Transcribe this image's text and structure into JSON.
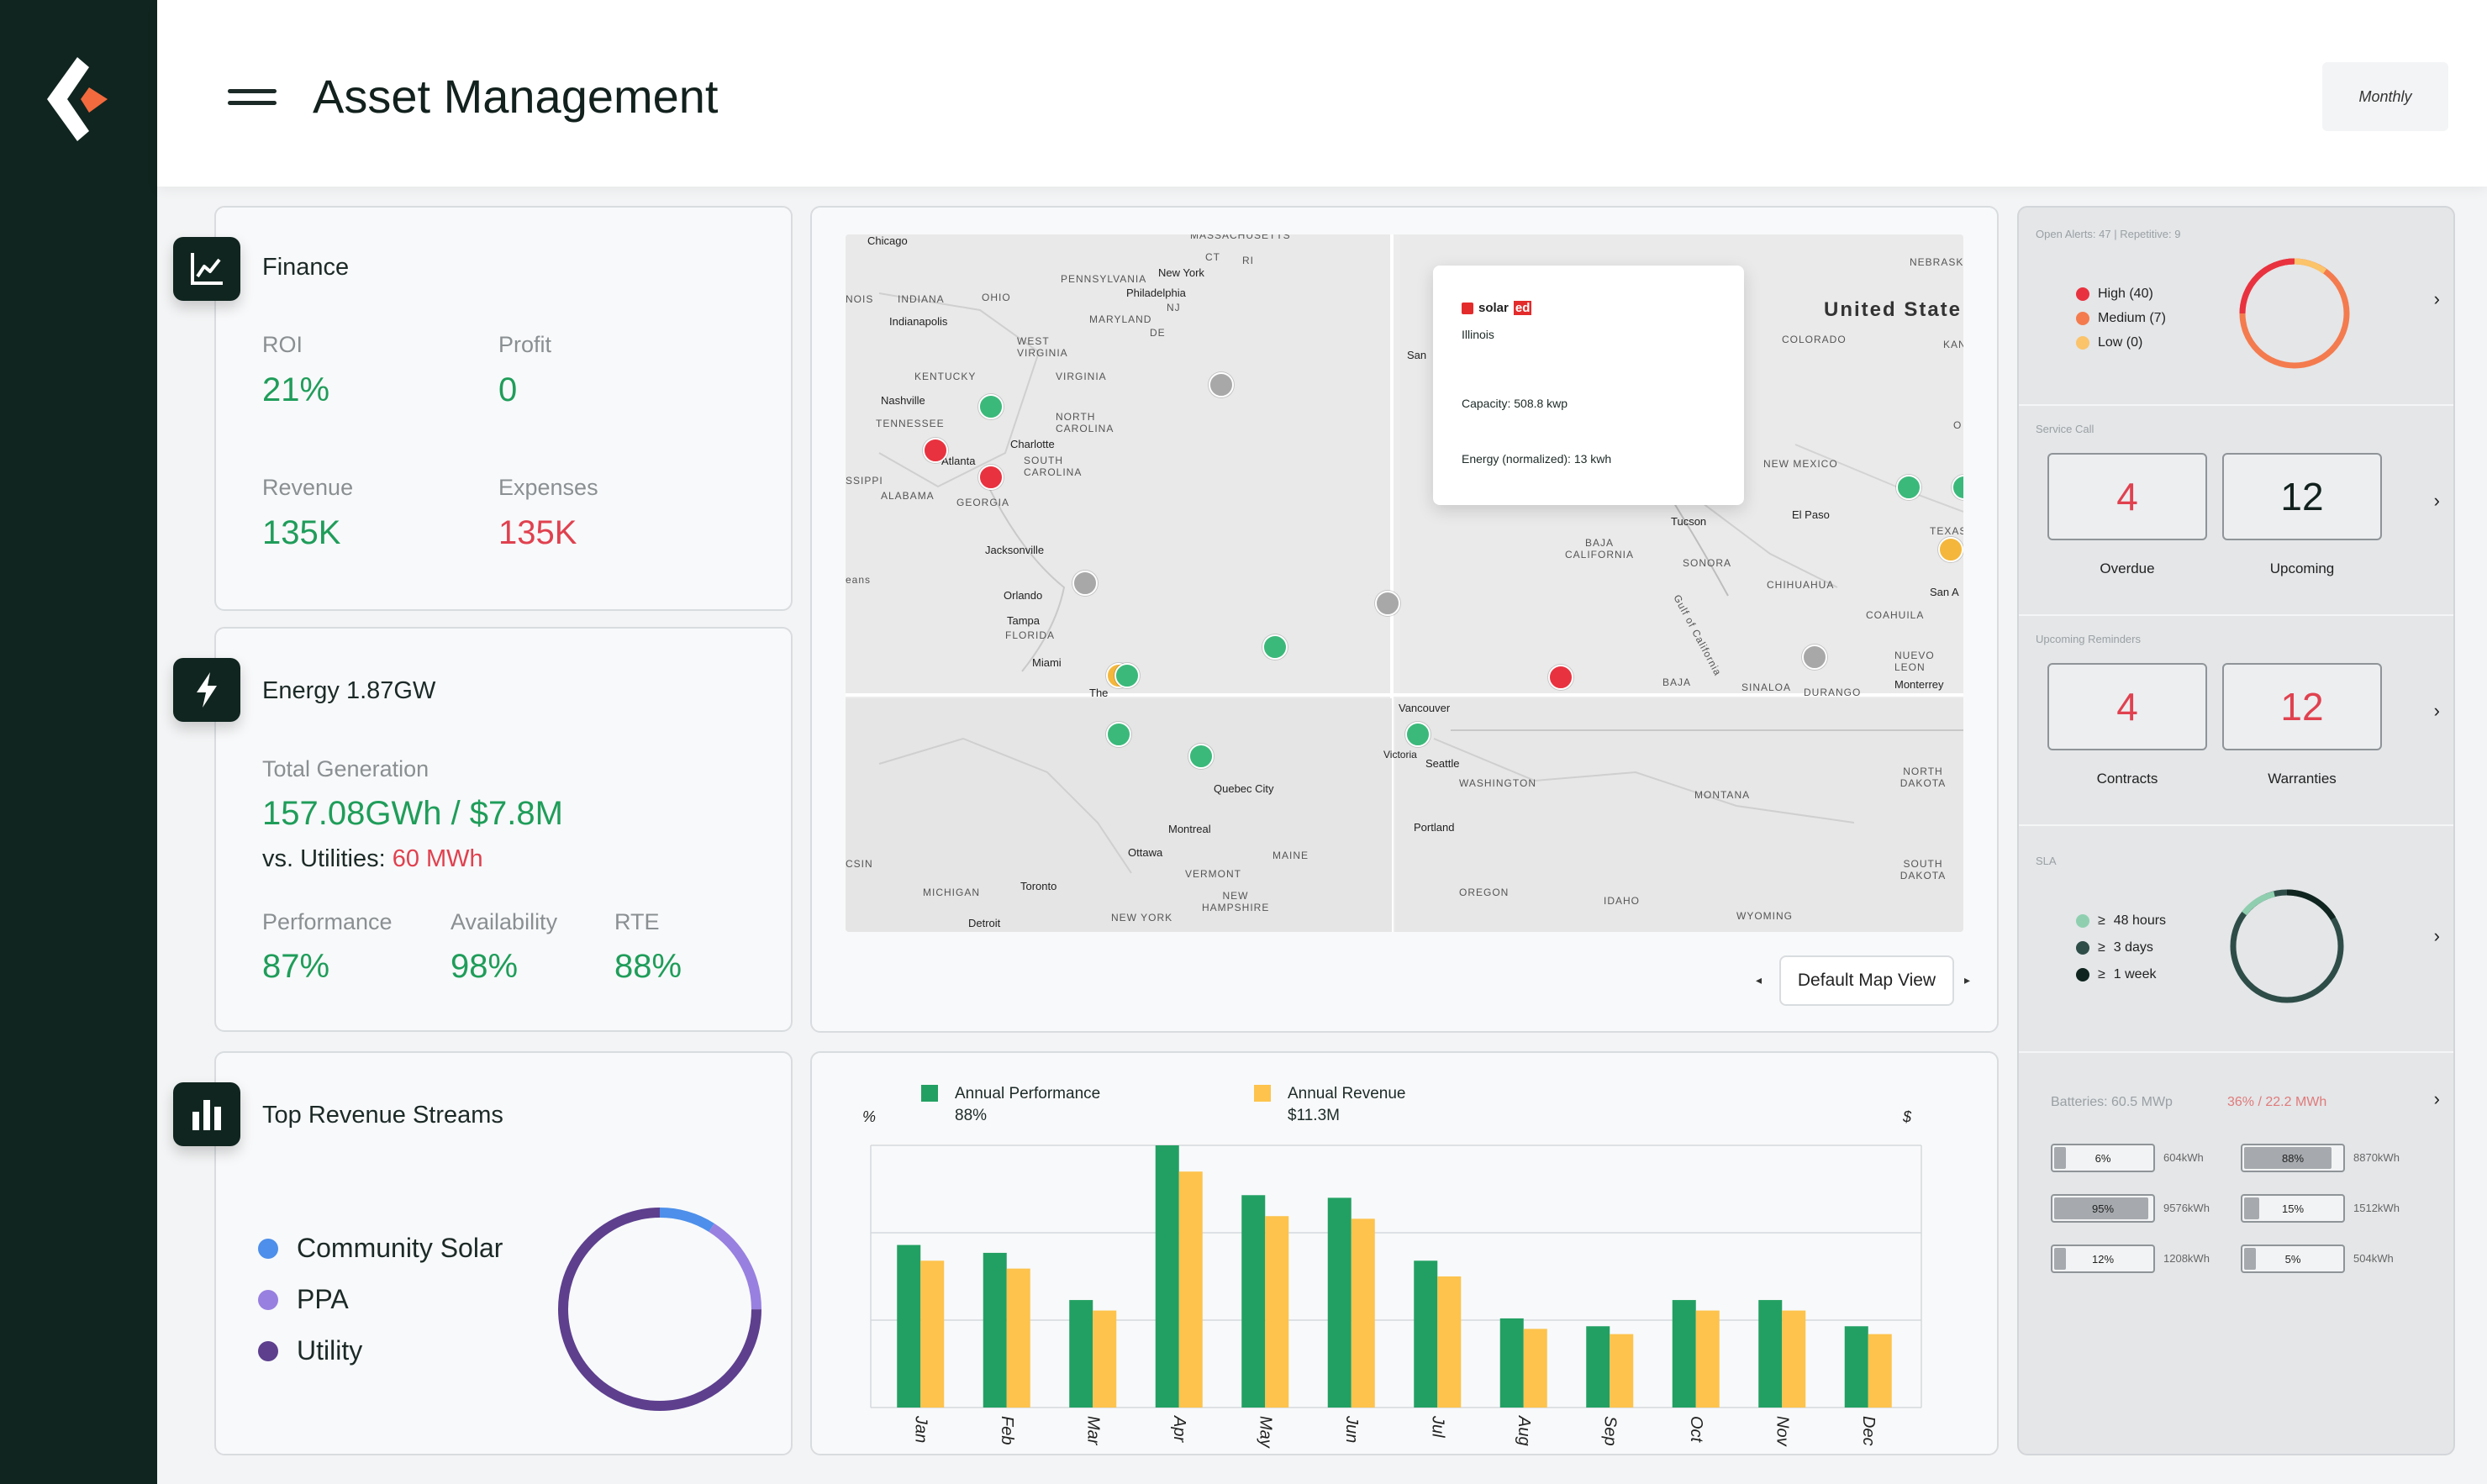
{
  "header": {
    "title": "Asset Management",
    "period": "Monthly"
  },
  "finance": {
    "title": "Finance",
    "roi_label": "ROI",
    "roi": "21%",
    "profit_label": "Profit",
    "profit": "0",
    "revenue_label": "Revenue",
    "revenue": "135K",
    "expenses_label": "Expenses",
    "expenses": "135K"
  },
  "energy": {
    "title": "Energy 1.87GW",
    "total_label": "Total Generation",
    "total": "157.08GWh / $7.8M",
    "vs_label": "vs. Utilities:",
    "vs_value": "60 MWh",
    "performance_label": "Performance",
    "performance": "87%",
    "availability_label": "Availability",
    "availability": "98%",
    "rte_label": "RTE",
    "rte": "88%"
  },
  "revenue_streams": {
    "title": "Top Revenue Streams",
    "items": [
      {
        "label": "Community Solar",
        "color": "#4d8fea",
        "share": 0.09
      },
      {
        "label": "PPA",
        "color": "#9880e0",
        "share": 0.16
      },
      {
        "label": "Utility",
        "color": "#5d3f8e",
        "share": 0.75
      }
    ]
  },
  "map": {
    "labels": {
      "chicago": "Chicago",
      "massachusetts": "MASSACHUSETTS",
      "ct": "CT",
      "ri": "RI",
      "new_york": "New York",
      "pennsylvania": "PENNSYLVANIA",
      "philadelphia": "Philadelphia",
      "nj": "NJ",
      "maryland": "MARYLAND",
      "de": "DE",
      "nois": "NOIS",
      "indiana": "INDIANA",
      "ohio": "OHIO",
      "indianapolis": "Indianapolis",
      "west_virginia": "WEST VIRGINIA",
      "virginia": "VIRGINIA",
      "kentucky": "KENTUCKY",
      "nashville": "Nashville",
      "tennessee": "TENNESSEE",
      "north_carolina": "NORTH CAROLINA",
      "charlotte": "Charlotte",
      "atlanta": "Atlanta",
      "south_carolina": "SOUTH CAROLINA",
      "ssipi": "SSIPPI",
      "alabama": "ALABAMA",
      "georgia": "GEORGIA",
      "jacksonville": "Jacksonville",
      "eans": "eans",
      "orlando": "Orlando",
      "tampa": "Tampa",
      "florida": "FLORIDA",
      "miami": "Miami",
      "the": "The",
      "san": "San",
      "united_states": "United State",
      "nebraska": "NEBRASK",
      "colorado": "COLORADO",
      "kan": "KAN",
      "new_mexico": "NEW MEXICO",
      "tucson": "Tucson",
      "el_paso": "El Paso",
      "texas": "TEXAS",
      "baja_california": "BAJA CALIFORNIA",
      "sonora": "SONORA",
      "chihuahua": "CHIHUAHUA",
      "san_a": "San A",
      "coahuila": "COAHUILA",
      "gulf": "Gulf of California",
      "nuevo_leon": "NUEVO LEON",
      "baja": "BAJA",
      "sinaloa": "SINALOA",
      "durango": "DURANGO",
      "monterrey": "Monterrey",
      "o": "O",
      "vancouver": "Vancouver",
      "victoria": "Victoria",
      "seattle": "Seattle",
      "washington": "WASHINGTON",
      "montana": "MONTANA",
      "north_dakota": "NORTH DAKOTA",
      "quebec_city": "Quebec City",
      "montreal": "Montreal",
      "ottawa": "Ottawa",
      "maine": "MAINE",
      "portland": "Portland",
      "csin": "CSIN",
      "vermont": "VERMONT",
      "michigan": "MICHIGAN",
      "toronto": "Toronto",
      "new_hampshire": "NEW HAMPSHIRE",
      "oregon": "OREGON",
      "idaho": "IDAHO",
      "south_dakota": "SOUTH DAKOTA",
      "wyoming": "WYOMING",
      "detroit": "Detroit",
      "new_york_state": "NEW YORK"
    },
    "popup": {
      "brand": "solar",
      "brand_suffix": "ed",
      "state": "Illinois",
      "capacity": "Capacity: 508.8 kwp",
      "energy": "Energy (normalized): 13 kwh"
    },
    "view_button": "Default Map View"
  },
  "performance_chart": {
    "legend_performance": "Annual Performance",
    "legend_performance_value": "88%",
    "legend_revenue": "Annual Revenue",
    "legend_revenue_value": "$11.3M",
    "left_unit": "%",
    "right_unit": "$"
  },
  "chart_data": {
    "type": "bar",
    "categories": [
      "Jan",
      "Feb",
      "Mar",
      "Apr",
      "May",
      "Jun",
      "Jul",
      "Aug",
      "Sep",
      "Oct",
      "Nov",
      "Dec"
    ],
    "series": [
      {
        "name": "Annual Performance",
        "color": "#22a063",
        "values": [
          62,
          59,
          41,
          100,
          81,
          80,
          56,
          34,
          31,
          41,
          41,
          31
        ]
      },
      {
        "name": "Annual Revenue",
        "color": "#fdc34c",
        "values": [
          56,
          53,
          37,
          90,
          73,
          72,
          50,
          30,
          28,
          37,
          37,
          28
        ]
      }
    ],
    "ylim": [
      0,
      100
    ],
    "grid": true,
    "legend": "top-left"
  },
  "right": {
    "alerts": {
      "label": "Open Alerts: 47 | Repetitive: 9",
      "items": [
        {
          "label": "High (40)",
          "color": "#e9323f"
        },
        {
          "label": "Medium (7)",
          "color": "#f47b4e"
        },
        {
          "label": "Low (0)",
          "color": "#fbc36a"
        }
      ]
    },
    "service_call": {
      "label": "Service Call",
      "overdue": "4",
      "overdue_label": "Overdue",
      "upcoming": "12",
      "upcoming_label": "Upcoming"
    },
    "reminders": {
      "label": "Upcoming Reminders",
      "contracts": "4",
      "contracts_label": "Contracts",
      "warranties": "12",
      "warranties_label": "Warranties"
    },
    "sla": {
      "label": "SLA",
      "items": [
        {
          "sym": "≥",
          "label": "48 hours",
          "color": "#8fcfb0"
        },
        {
          "sym": "≥",
          "label": "3 days",
          "color": "#2f4d48"
        },
        {
          "sym": "≥",
          "label": "1 week",
          "color": "#10251f"
        }
      ]
    },
    "batteries": {
      "label": "Batteries: 60.5 MWp",
      "label_red": "36% / 22.2 MWh",
      "items": [
        {
          "pct": "6%",
          "fill": 0.06,
          "kwh": "604kWh"
        },
        {
          "pct": "88%",
          "fill": 0.88,
          "kwh": "8870kWh"
        },
        {
          "pct": "95%",
          "fill": 0.95,
          "kwh": "9576kWh"
        },
        {
          "pct": "15%",
          "fill": 0.15,
          "kwh": "1512kWh"
        },
        {
          "pct": "12%",
          "fill": 0.12,
          "kwh": "1208kWh"
        },
        {
          "pct": "5%",
          "fill": 0.05,
          "kwh": "504kWh"
        }
      ]
    }
  }
}
